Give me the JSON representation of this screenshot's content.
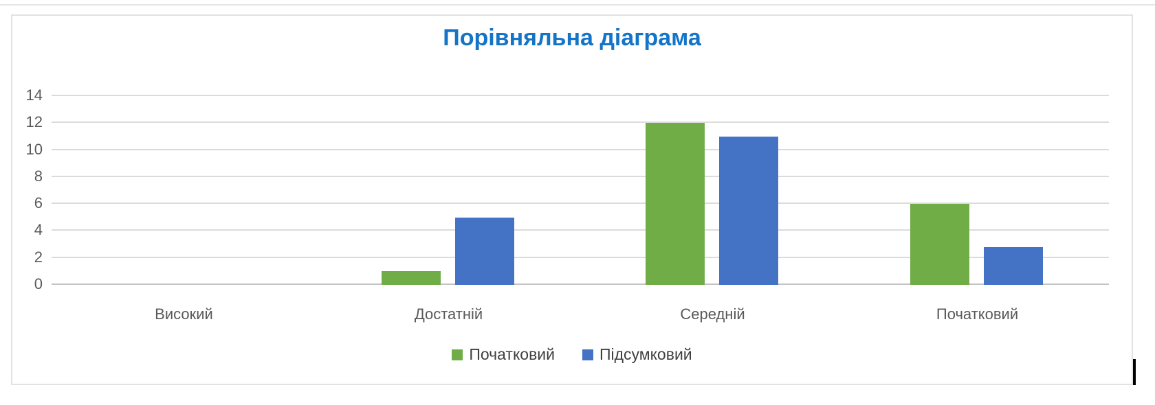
{
  "chart_data": {
    "type": "bar",
    "title": "Порівняльна діаграма",
    "categories": [
      "Високий",
      "Достатній",
      "Середній",
      "Початковий"
    ],
    "series": [
      {
        "name": "Початковий",
        "color": "#70AD47",
        "values": [
          0,
          1,
          12,
          6
        ]
      },
      {
        "name": "Підсумковий",
        "color": "#4472C4",
        "values": [
          0,
          5,
          11,
          2.8
        ]
      }
    ],
    "ylim": [
      0,
      14
    ],
    "yticks": [
      0,
      2,
      4,
      6,
      8,
      10,
      12,
      14
    ],
    "grid": "horizontal",
    "legend_position": "bottom"
  },
  "theme": {
    "title_color": "#1474C8",
    "bar_green": "#70AD47",
    "bar_blue": "#4472C4",
    "gridline_color": "#DBDBDB",
    "axis_line_color": "#C3C3C3",
    "tick_label_color": "#595959",
    "legend_text_color": "#3F3F3F",
    "frame_border_color": "#E2E2E2",
    "background": "#FFFFFF",
    "caret_color": "#000000"
  }
}
